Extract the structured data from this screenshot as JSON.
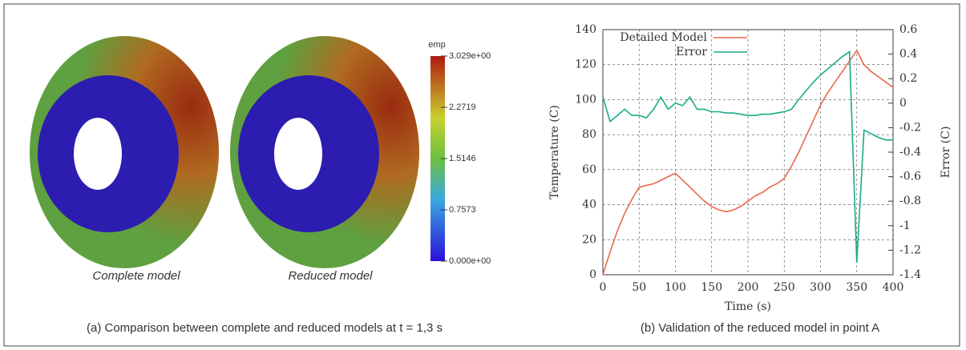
{
  "left_panel": {
    "colorbar_title": "emp",
    "colorbar_lim": [
      0,
      3.029
    ],
    "colorbar_ticks": [
      {
        "value": 3.029,
        "label": "3.029e+00"
      },
      2.2719,
      1.5146,
      0.7573,
      {
        "value": 0,
        "label": "0.000e+00"
      }
    ],
    "labels": [
      "Complete model",
      "Reduced model"
    ],
    "caption": "(a) Comparison between complete  and reduced models at t = 1,3 s"
  },
  "chart_data": {
    "type": "line",
    "caption": "(b) Validation of the reduced model in point A",
    "xlabel": "Time (s)",
    "ylabel": "Temperature (C)",
    "y2label": "Error (C)",
    "x": [
      0,
      10,
      20,
      30,
      40,
      50,
      60,
      70,
      80,
      90,
      100,
      110,
      120,
      130,
      140,
      150,
      160,
      170,
      180,
      190,
      200,
      210,
      220,
      230,
      240,
      250,
      260,
      270,
      280,
      290,
      300,
      310,
      320,
      330,
      340,
      350,
      360,
      370,
      380,
      390,
      400
    ],
    "series": [
      {
        "name": "Detailed Model",
        "color": "#e8694a",
        "values": [
          0,
          13,
          25,
          35,
          43,
          50,
          51,
          52,
          54,
          56,
          58,
          54,
          50,
          46,
          42,
          39,
          37,
          36,
          37,
          39,
          42,
          45,
          47,
          50,
          52,
          55,
          62,
          70,
          79,
          88,
          97,
          104,
          110,
          116,
          122,
          128,
          120,
          116,
          113,
          110,
          107
        ]
      },
      {
        "name": "Error",
        "color": "#1aaa88",
        "axis": "y2",
        "values": [
          0.05,
          -0.15,
          -0.1,
          -0.05,
          -0.1,
          -0.1,
          -0.12,
          -0.05,
          0.05,
          -0.05,
          0,
          -0.02,
          0.05,
          -0.05,
          -0.05,
          -0.07,
          -0.07,
          -0.08,
          -0.08,
          -0.09,
          -0.1,
          -0.1,
          -0.09,
          -0.09,
          -0.08,
          -0.07,
          -0.05,
          0.03,
          0.1,
          0.17,
          0.23,
          0.28,
          0.33,
          0.38,
          0.42,
          -1.3,
          -0.22,
          -0.25,
          -0.28,
          -0.3,
          -0.3
        ]
      }
    ],
    "xlim": [
      0,
      400
    ],
    "ylim": [
      0,
      140
    ],
    "y2lim": [
      -1.4,
      0.6
    ],
    "xticks": [
      0,
      50,
      100,
      150,
      200,
      250,
      300,
      350,
      400
    ],
    "yticks": [
      0,
      20,
      40,
      60,
      80,
      100,
      120,
      140
    ],
    "y2ticks": [
      -1.4,
      -1.2,
      -1,
      -0.8,
      -0.6,
      -0.4,
      -0.2,
      0,
      0.2,
      0.4,
      0.6
    ],
    "grid": true,
    "legend": "top-left"
  }
}
